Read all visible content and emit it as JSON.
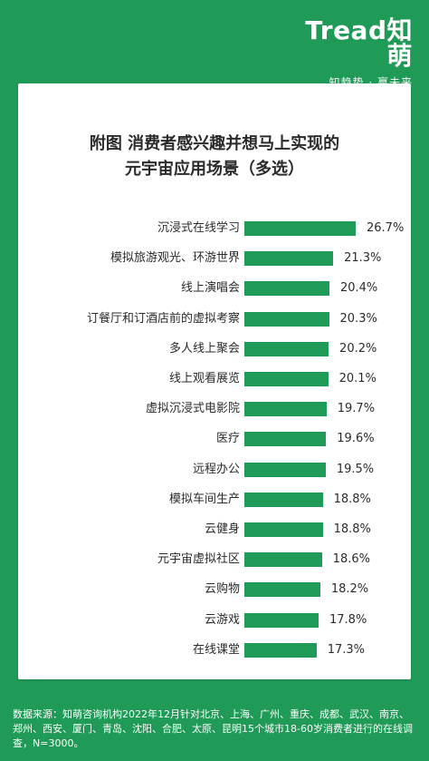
{
  "brand": {
    "logo": "Tread知萌",
    "slogan": "知趋势 · 赢未来"
  },
  "chart_data": {
    "type": "bar",
    "title_lines": [
      "附图 消费者感兴趣并想马上实现的",
      "元宇宙应用场景（多选）"
    ],
    "categories": [
      "沉浸式在线学习",
      "模拟旅游观光、环游世界",
      "线上演唱会",
      "订餐厅和订酒店前的虚拟考察",
      "多人线上聚会",
      "线上观看展览",
      "虚拟沉浸式电影院",
      "医疗",
      "远程办公",
      "模拟车间生产",
      "云健身",
      "元宇宙虚拟社区",
      "云购物",
      "云游戏",
      "在线课堂"
    ],
    "values": [
      26.7,
      21.3,
      20.4,
      20.3,
      20.2,
      20.1,
      19.7,
      19.6,
      19.5,
      18.8,
      18.8,
      18.6,
      18.2,
      17.8,
      17.3
    ],
    "value_labels": [
      "26.7%",
      "21.3%",
      "20.4%",
      "20.3%",
      "20.2%",
      "20.1%",
      "19.7%",
      "19.6%",
      "19.5%",
      "18.8%",
      "18.8%",
      "18.6%",
      "18.2%",
      "17.8%",
      "17.3%"
    ],
    "unit": "%",
    "xlim": [
      0,
      30
    ],
    "grid": false,
    "color": "#1f9a57"
  },
  "footer": {
    "text": "数据来源：知萌咨询机构2022年12月针对北京、上海、广州、重庆、成都、武汉、南京、郑州、西安、厦门、青岛、沈阳、合肥、太原、昆明15个城市18-60岁消费者进行的在线调查，N=3000。"
  },
  "colors": {
    "background": "#1f9a57",
    "card": "#ffffff",
    "text": "#2b2b2b"
  }
}
